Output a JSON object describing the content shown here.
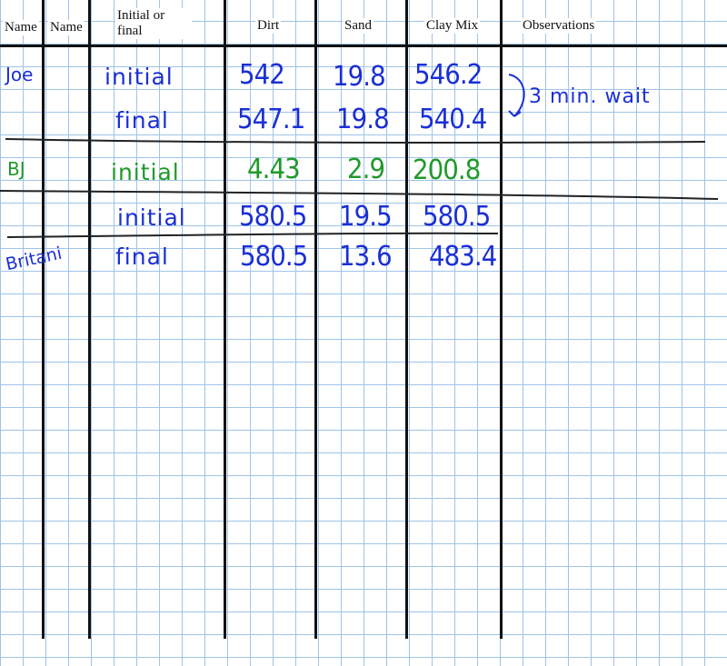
{
  "headers": {
    "name1": "Name",
    "name2": "Name",
    "initial_or_final": "Initial or final",
    "dirt": "Dirt",
    "sand": "Sand",
    "clay_mix": "Clay Mix",
    "observations": "Observations"
  },
  "rows": [
    {
      "name": "Joe",
      "stage": "initial",
      "dirt": "542",
      "sand": "19.8",
      "clay": "546.2"
    },
    {
      "name": "",
      "stage": "final",
      "dirt": "547.1",
      "sand": "19.8",
      "clay": "540.4"
    },
    {
      "name": "BJ",
      "stage": "initial",
      "dirt": "4.43",
      "sand": "2.9",
      "clay": "200.8"
    },
    {
      "name": "",
      "stage": "initial",
      "dirt": "580.5",
      "sand": "19.5",
      "clay": "580.5"
    },
    {
      "name": "Britani",
      "stage": "final",
      "dirt": "580.5",
      "sand": "13.6",
      "clay": "483.4"
    }
  ],
  "annotation": "3 min. wait",
  "colors": {
    "blue_ink": "#1a2fd6",
    "green_ink": "#1f9a2a",
    "grid": "#9fc4e8"
  }
}
